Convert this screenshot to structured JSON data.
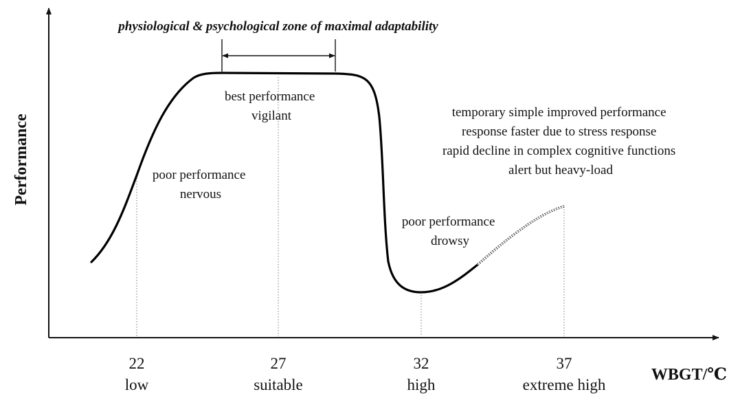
{
  "zone_title": "physiological & psychological zone of maximal adaptability",
  "y_axis_label": "Performance",
  "x_axis_label": "WBGT/℃",
  "ticks": [
    {
      "value": "22",
      "label": "low"
    },
    {
      "value": "27",
      "label": "suitable"
    },
    {
      "value": "32",
      "label": "high"
    },
    {
      "value": "37",
      "label": "extreme high"
    }
  ],
  "annotations": {
    "best": [
      "best performance",
      "vigilant"
    ],
    "nervous": [
      "poor performance",
      "nervous"
    ],
    "drowsy": [
      "poor performance",
      "drowsy"
    ],
    "heat": [
      "temporary simple improved performance",
      "response faster due to stress response",
      "rapid decline in complex cognitive functions",
      "alert but heavy-load"
    ]
  }
}
